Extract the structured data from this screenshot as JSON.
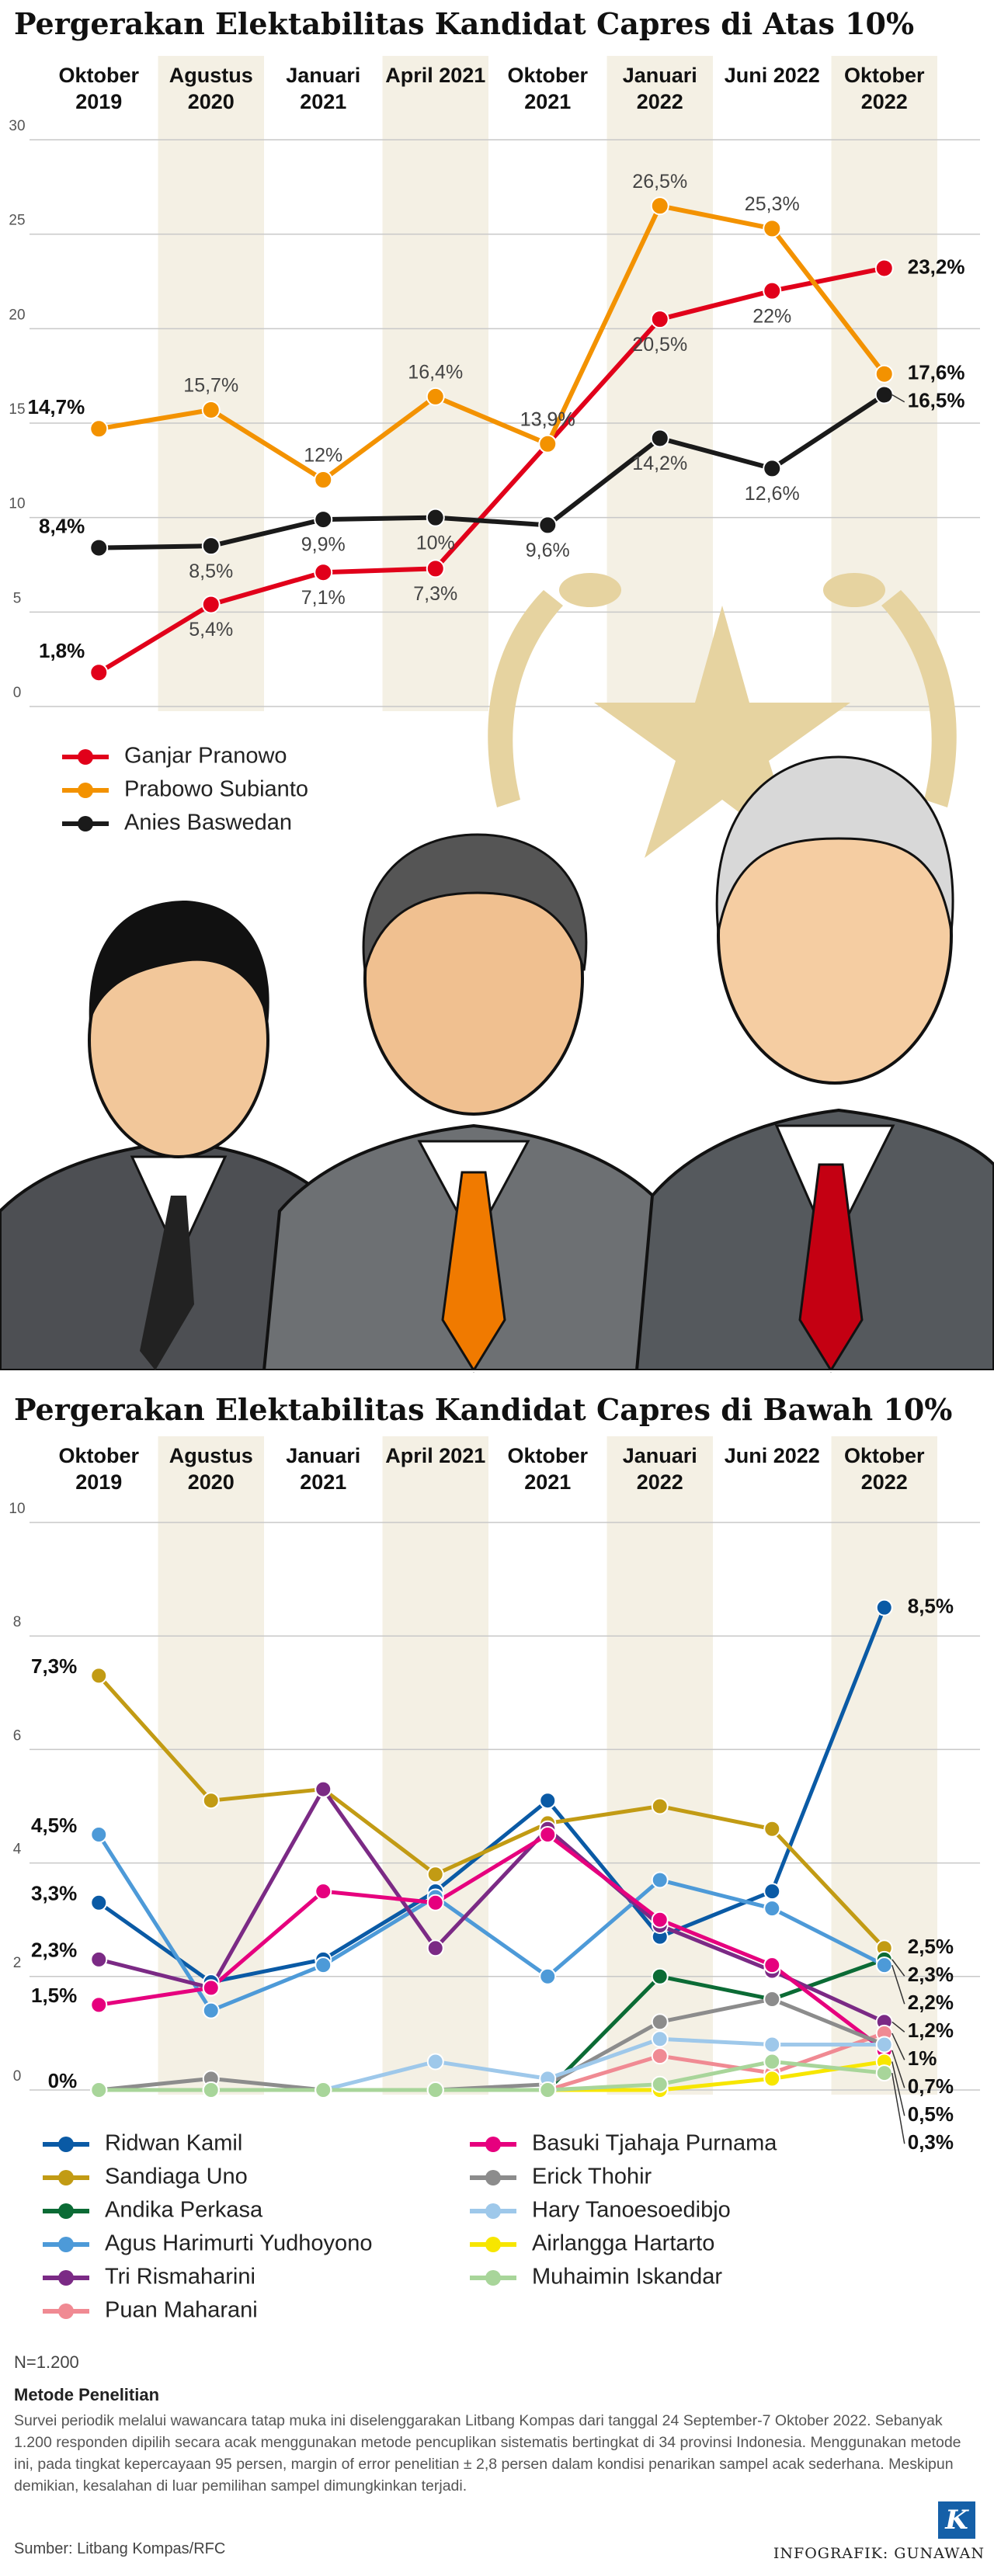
{
  "chart_data": [
    {
      "type": "line",
      "title": "Pergerakan Elektabilitas Kandidat Capres di Atas 10%",
      "categories": [
        "Oktober 2019",
        "Agustus 2020",
        "Januari 2021",
        "April 2021",
        "Oktober 2021",
        "Januari 2022",
        "Juni 2022",
        "Oktober 2022"
      ],
      "ylim": [
        0,
        30
      ],
      "yticks": [
        0,
        5,
        10,
        15,
        20,
        25,
        30
      ],
      "grid": true,
      "legend": "bottom-left",
      "series": [
        {
          "name": "Ganjar Pranowo",
          "color": "#e1001a",
          "values": [
            1.8,
            5.4,
            7.1,
            7.3,
            13.9,
            20.5,
            22,
            23.2
          ],
          "value_labels": [
            "1,8%",
            "5,4%",
            "7,1%",
            "7,3%",
            "13,9%",
            "20,5%",
            "22%",
            "23,2%"
          ]
        },
        {
          "name": "Prabowo Subianto",
          "color": "#f39200",
          "values": [
            14.7,
            15.7,
            12,
            16.4,
            13.9,
            26.5,
            25.3,
            17.6
          ],
          "value_labels": [
            "14,7%",
            "15,7%",
            "12%",
            "16,4%",
            "13,9%",
            "26,5%",
            "25,3%",
            "17,6%"
          ]
        },
        {
          "name": "Anies Baswedan",
          "color": "#1a1a1a",
          "values": [
            8.4,
            8.5,
            9.9,
            10,
            9.6,
            14.2,
            12.6,
            16.5
          ],
          "value_labels": [
            "8,4%",
            "8,5%",
            "9,9%",
            "10%",
            "9,6%",
            "14,2%",
            "12,6%",
            "16,5%"
          ]
        }
      ]
    },
    {
      "type": "line",
      "title": "Pergerakan Elektabilitas Kandidat Capres di Bawah 10%",
      "categories": [
        "Oktober 2019",
        "Agustus 2020",
        "Januari 2021",
        "April 2021",
        "Oktober 2021",
        "Januari 2022",
        "Juni 2022",
        "Oktober 2022"
      ],
      "ylim": [
        0,
        10
      ],
      "yticks": [
        0,
        2,
        4,
        6,
        8,
        10
      ],
      "grid": true,
      "legend": "bottom-left",
      "series": [
        {
          "name": "Ridwan Kamil",
          "color": "#0a5aa5",
          "values": [
            3.3,
            1.9,
            2.3,
            3.5,
            5.1,
            2.7,
            3.5,
            8.5
          ],
          "value_labels": [
            "3,3%",
            null,
            null,
            null,
            null,
            null,
            null,
            "8,5%"
          ]
        },
        {
          "name": "Sandiaga Uno",
          "color": "#c29b14",
          "values": [
            7.3,
            5.1,
            5.3,
            3.8,
            4.7,
            5.0,
            4.6,
            2.5
          ],
          "value_labels": [
            "7,3%",
            null,
            null,
            null,
            null,
            null,
            null,
            "2,5%"
          ]
        },
        {
          "name": "Andika Perkasa",
          "color": "#0b6b35",
          "values": [
            0,
            0,
            0,
            0,
            0,
            2.0,
            1.6,
            2.3
          ],
          "value_labels": [
            "0%",
            null,
            null,
            null,
            null,
            null,
            null,
            "2,3%"
          ]
        },
        {
          "name": "Agus Harimurti Yudhoyono",
          "color": "#4d9ad8",
          "values": [
            4.5,
            1.4,
            2.2,
            3.4,
            2.0,
            3.7,
            3.2,
            2.2
          ],
          "value_labels": [
            "4,5%",
            null,
            null,
            null,
            null,
            null,
            null,
            "2,2%"
          ]
        },
        {
          "name": "Tri Rismaharini",
          "color": "#7b2a85",
          "values": [
            2.3,
            1.8,
            5.3,
            2.5,
            4.6,
            2.9,
            2.1,
            1.2
          ],
          "value_labels": [
            "2,3%",
            null,
            null,
            null,
            null,
            null,
            null,
            "1,2%"
          ]
        },
        {
          "name": "Puan Maharani",
          "color": "#f08a93",
          "values": [
            0,
            0,
            0,
            0,
            0,
            0.6,
            0.3,
            1
          ],
          "value_labels": [
            null,
            null,
            null,
            null,
            null,
            null,
            null,
            "1%"
          ]
        },
        {
          "name": "Basuki Tjahaja Purnama",
          "color": "#e6007e",
          "values": [
            1.5,
            1.8,
            3.5,
            3.3,
            4.5,
            3.0,
            2.2,
            0.7
          ],
          "value_labels": [
            "1,5%",
            null,
            null,
            null,
            null,
            null,
            null,
            "0,7%"
          ]
        },
        {
          "name": "Erick Thohir",
          "color": "#8c8c8c",
          "values": [
            0,
            0.2,
            0,
            0,
            0.1,
            1.2,
            1.6,
            0.8
          ],
          "value_labels": [
            null,
            null,
            null,
            null,
            null,
            null,
            null,
            null
          ]
        },
        {
          "name": "Hary Tanoesoedibjo",
          "color": "#9ec8ea",
          "values": [
            0,
            0,
            0,
            0.5,
            0.2,
            0.9,
            0.8,
            0.8
          ],
          "value_labels": [
            null,
            null,
            null,
            null,
            null,
            null,
            null,
            null
          ]
        },
        {
          "name": "Airlangga Hartarto",
          "color": "#f7e600",
          "values": [
            0,
            0,
            0,
            0,
            0,
            0,
            0.2,
            0.5
          ],
          "value_labels": [
            null,
            null,
            null,
            null,
            null,
            null,
            null,
            "0,5%"
          ]
        },
        {
          "name": "Muhaimin Iskandar",
          "color": "#a8d59a",
          "values": [
            0,
            0,
            0,
            0,
            0,
            0.1,
            0.5,
            0.3
          ],
          "value_labels": [
            null,
            null,
            null,
            null,
            null,
            null,
            null,
            "0,3%"
          ]
        }
      ]
    }
  ],
  "notes": {
    "sample": "N=1.200",
    "method_title": "Metode Penelitian",
    "method_text": "Survei periodik melalui wawancara tatap muka ini diselenggarakan Litbang Kompas dari tanggal 24 September-7 Oktober 2022. Sebanyak 1.200 responden dipilih secara acak menggunakan metode pencuplikan sistematis bertingkat di 34 provinsi Indonesia. Menggunakan metode ini, pada tingkat kepercayaan 95 persen, margin of error penelitian ± 2,8 persen dalam kondisi penarikan sampel acak sederhana. Meskipun demikian, kesalahan di luar pemilihan sampel dimungkinkan terjadi.",
    "source": "Sumber: Litbang Kompas/RFC",
    "credit": "INFOGRAFIK: GUNAWAN",
    "logo": "K"
  }
}
